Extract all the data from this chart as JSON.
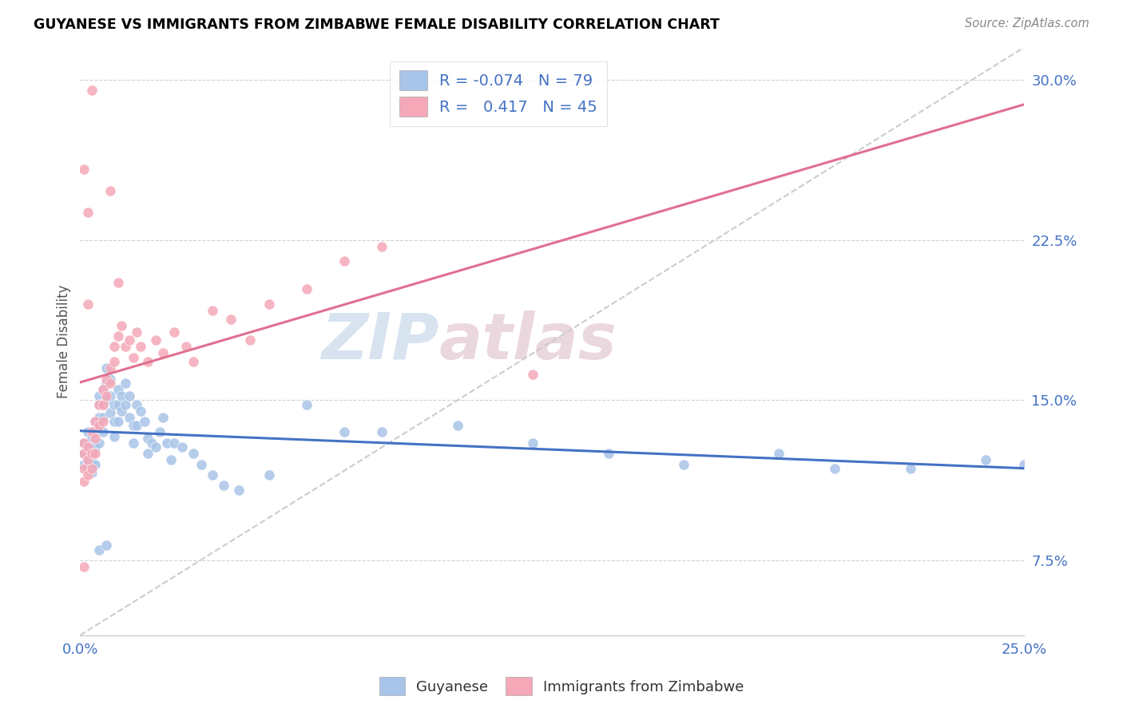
{
  "title": "GUYANESE VS IMMIGRANTS FROM ZIMBABWE FEMALE DISABILITY CORRELATION CHART",
  "source": "Source: ZipAtlas.com",
  "ylabel": "Female Disability",
  "x_min": 0.0,
  "x_max": 0.25,
  "y_min": 0.04,
  "y_max": 0.315,
  "x_ticks": [
    0.0,
    0.05,
    0.1,
    0.15,
    0.2,
    0.25
  ],
  "x_tick_labels": [
    "0.0%",
    "",
    "",
    "",
    "",
    "25.0%"
  ],
  "y_ticks": [
    0.075,
    0.15,
    0.225,
    0.3
  ],
  "y_tick_labels": [
    "7.5%",
    "15.0%",
    "22.5%",
    "30.0%"
  ],
  "watermark": "ZIPatlas",
  "legend_r_blue": "-0.074",
  "legend_n_blue": "79",
  "legend_r_pink": "0.417",
  "legend_n_pink": "45",
  "blue_color": "#a8c4e8",
  "pink_color": "#f5a8b8",
  "blue_line_color": "#4472c4",
  "pink_line_color": "#e07090",
  "diagonal_line_color": "#cccccc",
  "guyanese_x": [
    0.001,
    0.001,
    0.001,
    0.002,
    0.002,
    0.002,
    0.002,
    0.003,
    0.003,
    0.003,
    0.003,
    0.003,
    0.004,
    0.004,
    0.004,
    0.004,
    0.005,
    0.005,
    0.005,
    0.005,
    0.005,
    0.006,
    0.006,
    0.006,
    0.006,
    0.007,
    0.007,
    0.007,
    0.008,
    0.008,
    0.008,
    0.009,
    0.009,
    0.009,
    0.01,
    0.01,
    0.01,
    0.011,
    0.011,
    0.012,
    0.012,
    0.013,
    0.013,
    0.014,
    0.014,
    0.015,
    0.015,
    0.016,
    0.017,
    0.018,
    0.018,
    0.019,
    0.02,
    0.021,
    0.022,
    0.023,
    0.024,
    0.025,
    0.027,
    0.03,
    0.032,
    0.035,
    0.038,
    0.042,
    0.05,
    0.06,
    0.07,
    0.08,
    0.1,
    0.12,
    0.14,
    0.16,
    0.185,
    0.2,
    0.22,
    0.24,
    0.25,
    0.005,
    0.007
  ],
  "guyanese_y": [
    0.13,
    0.125,
    0.12,
    0.135,
    0.128,
    0.122,
    0.118,
    0.132,
    0.128,
    0.124,
    0.12,
    0.116,
    0.14,
    0.135,
    0.128,
    0.12,
    0.152,
    0.148,
    0.142,
    0.138,
    0.13,
    0.155,
    0.148,
    0.142,
    0.135,
    0.165,
    0.158,
    0.15,
    0.16,
    0.152,
    0.144,
    0.148,
    0.14,
    0.133,
    0.155,
    0.148,
    0.14,
    0.152,
    0.145,
    0.158,
    0.148,
    0.152,
    0.142,
    0.138,
    0.13,
    0.148,
    0.138,
    0.145,
    0.14,
    0.132,
    0.125,
    0.13,
    0.128,
    0.135,
    0.142,
    0.13,
    0.122,
    0.13,
    0.128,
    0.125,
    0.12,
    0.115,
    0.11,
    0.108,
    0.115,
    0.148,
    0.135,
    0.135,
    0.138,
    0.13,
    0.125,
    0.12,
    0.125,
    0.118,
    0.118,
    0.122,
    0.12,
    0.08,
    0.082
  ],
  "zimbabwe_x": [
    0.001,
    0.001,
    0.001,
    0.001,
    0.002,
    0.002,
    0.002,
    0.003,
    0.003,
    0.003,
    0.004,
    0.004,
    0.004,
    0.005,
    0.005,
    0.006,
    0.006,
    0.006,
    0.007,
    0.007,
    0.008,
    0.008,
    0.009,
    0.009,
    0.01,
    0.011,
    0.012,
    0.013,
    0.014,
    0.015,
    0.016,
    0.018,
    0.02,
    0.022,
    0.025,
    0.028,
    0.03,
    0.035,
    0.04,
    0.045,
    0.05,
    0.06,
    0.07,
    0.08,
    0.12
  ],
  "zimbabwe_y": [
    0.13,
    0.125,
    0.118,
    0.112,
    0.128,
    0.122,
    0.115,
    0.135,
    0.125,
    0.118,
    0.14,
    0.132,
    0.125,
    0.148,
    0.138,
    0.155,
    0.148,
    0.14,
    0.16,
    0.152,
    0.165,
    0.158,
    0.175,
    0.168,
    0.18,
    0.185,
    0.175,
    0.178,
    0.17,
    0.182,
    0.175,
    0.168,
    0.178,
    0.172,
    0.182,
    0.175,
    0.168,
    0.192,
    0.188,
    0.178,
    0.195,
    0.202,
    0.215,
    0.222,
    0.162
  ],
  "zimbabwe_y_outliers_x": [
    0.003,
    0.008,
    0.002,
    0.01,
    0.001,
    0.002,
    0.001
  ],
  "zimbabwe_y_outliers_y": [
    0.295,
    0.248,
    0.238,
    0.205,
    0.258,
    0.195,
    0.072
  ]
}
